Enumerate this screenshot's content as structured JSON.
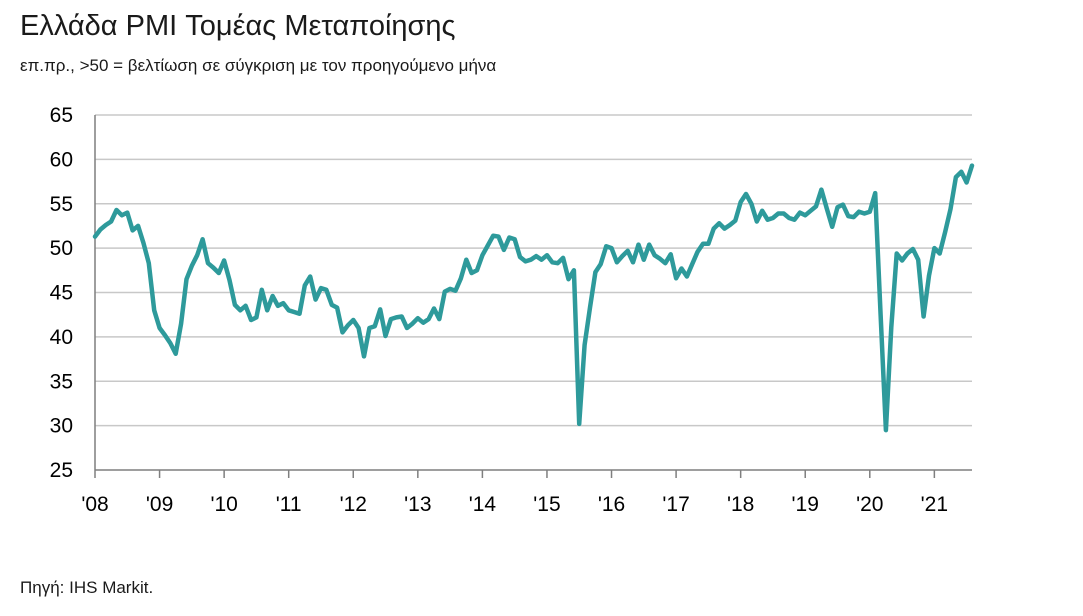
{
  "chart_data": {
    "type": "line",
    "title": "Ελλάδα PMI Τομέας Μεταποίησης",
    "subtitle": "επ.πρ., >50 = βελτίωση σε σύγκριση με τον προηγούμενο μήνα",
    "source": "Πηγή: IHS Markit.",
    "xlabel": "",
    "ylabel": "",
    "ylim": [
      25,
      65
    ],
    "yticks": [
      "25",
      "30",
      "35",
      "40",
      "45",
      "50",
      "55",
      "60",
      "65"
    ],
    "xticks": [
      "'08",
      "'09",
      "'10",
      "'11",
      "'12",
      "'13",
      "'14",
      "'15",
      "'16",
      "'17",
      "'18",
      "'19",
      "'20",
      "'21"
    ],
    "grid": true,
    "legend": "none",
    "line_color": "#2e9a9b",
    "series": [
      {
        "x": [
          2008.0,
          2008.083,
          2008.167,
          2008.25,
          2008.333,
          2008.417,
          2008.5,
          2008.583,
          2008.667,
          2008.75,
          2008.833,
          2008.917,
          2009.0,
          2009.083,
          2009.167,
          2009.25,
          2009.333,
          2009.417,
          2009.5,
          2009.583,
          2009.667,
          2009.75,
          2009.833,
          2009.917,
          2010.0,
          2010.083,
          2010.167,
          2010.25,
          2010.333,
          2010.417,
          2010.5,
          2010.583,
          2010.667,
          2010.75,
          2010.833,
          2010.917,
          2011.0,
          2011.083,
          2011.167,
          2011.25,
          2011.333,
          2011.417,
          2011.5,
          2011.583,
          2011.667,
          2011.75,
          2011.833,
          2011.917,
          2012.0,
          2012.083,
          2012.167,
          2012.25,
          2012.333,
          2012.417,
          2012.5,
          2012.583,
          2012.667,
          2012.75,
          2012.833,
          2012.917,
          2013.0,
          2013.083,
          2013.167,
          2013.25,
          2013.333,
          2013.417,
          2013.5,
          2013.583,
          2013.667,
          2013.75,
          2013.833,
          2013.917,
          2014.0,
          2014.083,
          2014.167,
          2014.25,
          2014.333,
          2014.417,
          2014.5,
          2014.583,
          2014.667,
          2014.75,
          2014.833,
          2014.917,
          2015.0,
          2015.083,
          2015.167,
          2015.25,
          2015.333,
          2015.417,
          2015.5,
          2015.583,
          2015.667,
          2015.75,
          2015.833,
          2015.917,
          2016.0,
          2016.083,
          2016.167,
          2016.25,
          2016.333,
          2016.417,
          2016.5,
          2016.583,
          2016.667,
          2016.75,
          2016.833,
          2016.917,
          2017.0,
          2017.083,
          2017.167,
          2017.25,
          2017.333,
          2017.417,
          2017.5,
          2017.583,
          2017.667,
          2017.75,
          2017.833,
          2017.917,
          2018.0,
          2018.083,
          2018.167,
          2018.25,
          2018.333,
          2018.417,
          2018.5,
          2018.583,
          2018.667,
          2018.75,
          2018.833,
          2018.917,
          2019.0,
          2019.083,
          2019.167,
          2019.25,
          2019.333,
          2019.417,
          2019.5,
          2019.583,
          2019.667,
          2019.75,
          2019.833,
          2019.917,
          2020.0,
          2020.083,
          2020.167,
          2020.25,
          2020.333,
          2020.417,
          2020.5,
          2020.583,
          2020.667,
          2020.75,
          2020.833,
          2020.917,
          2021.0,
          2021.083,
          2021.167,
          2021.25,
          2021.333,
          2021.417,
          2021.5,
          2021.583
        ],
        "values": [
          51.3,
          52.1,
          52.6,
          53.0,
          54.3,
          53.7,
          54.0,
          52.0,
          52.5,
          50.6,
          48.3,
          43.0,
          41.0,
          40.2,
          39.3,
          38.1,
          41.5,
          46.5,
          48.0,
          49.2,
          51.0,
          48.3,
          47.8,
          47.2,
          48.6,
          46.4,
          43.6,
          43.0,
          43.5,
          41.9,
          42.2,
          45.3,
          43.0,
          44.6,
          43.5,
          43.8,
          43.0,
          42.8,
          42.6,
          45.8,
          46.8,
          44.2,
          45.5,
          45.3,
          43.6,
          43.3,
          40.5,
          41.3,
          41.9,
          41.0,
          37.8,
          41.0,
          41.2,
          43.1,
          40.1,
          42.0,
          42.2,
          42.3,
          41.0,
          41.5,
          42.1,
          41.6,
          42.0,
          43.2,
          42.0,
          45.1,
          45.4,
          45.2,
          46.6,
          48.7,
          47.2,
          47.5,
          49.2,
          50.3,
          51.4,
          51.3,
          49.8,
          51.2,
          51.0,
          49.0,
          48.5,
          48.7,
          49.1,
          48.7,
          49.2,
          48.4,
          48.3,
          48.9,
          46.5,
          47.5,
          30.2,
          39.1,
          43.3,
          47.3,
          48.2,
          50.2,
          50.0,
          48.4,
          49.1,
          49.7,
          48.4,
          50.4,
          48.7,
          50.4,
          49.2,
          48.8,
          48.3,
          49.3,
          46.6,
          47.7,
          46.8,
          48.2,
          49.6,
          50.5,
          50.5,
          52.2,
          52.8,
          52.2,
          52.6,
          53.1,
          55.2,
          56.1,
          55.0,
          53.0,
          54.2,
          53.2,
          53.4,
          53.9,
          53.9,
          53.4,
          53.2,
          54.0,
          53.7,
          54.2,
          54.7,
          56.6,
          54.5,
          52.4,
          54.6,
          54.9,
          53.6,
          53.5,
          54.1,
          53.9,
          54.1,
          56.2,
          42.5,
          29.5,
          41.1,
          49.4,
          48.6,
          49.4,
          49.9,
          48.7,
          42.3,
          46.9,
          50.0,
          49.4,
          51.8,
          54.4,
          58.0,
          58.6,
          57.4,
          59.3
        ]
      }
    ]
  }
}
